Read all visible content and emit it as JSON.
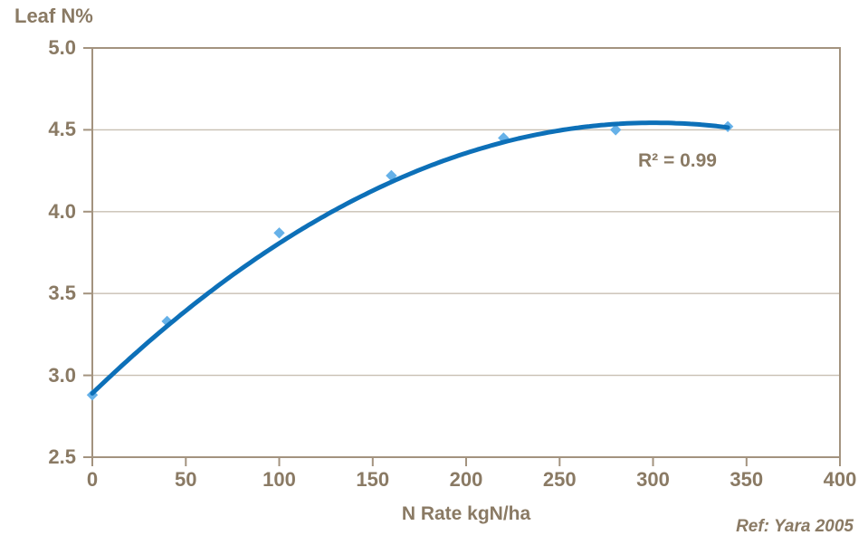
{
  "chart_data": {
    "type": "scatter",
    "title": "Leaf N%",
    "xlabel": "N Rate kgN/ha",
    "ylabel": "Leaf N%",
    "series": [
      {
        "name": "Leaf N%",
        "x": [
          0,
          40,
          100,
          160,
          220,
          280,
          340
        ],
        "y": [
          2.88,
          3.33,
          3.87,
          4.22,
          4.45,
          4.5,
          4.52
        ]
      }
    ],
    "trendline": {
      "type": "polynomial",
      "degree": 2,
      "coefficients": [
        2.89,
        0.011,
        -1.83e-05
      ],
      "x_start": 0,
      "x_end": 340,
      "r_squared": 0.99
    },
    "annotation": "R² = 0.99",
    "xlim": [
      0,
      400
    ],
    "ylim": [
      2.5,
      5.0
    ],
    "x_ticks": [
      0,
      50,
      100,
      150,
      200,
      250,
      300,
      350,
      400
    ],
    "x_tick_labels": [
      "0",
      "50",
      "100",
      "150",
      "200",
      "250",
      "300",
      "350",
      "400"
    ],
    "y_ticks": [
      2.5,
      3.0,
      3.5,
      4.0,
      4.5,
      5.0
    ],
    "y_tick_labels": [
      "2.5",
      "3.0",
      "3.5",
      "4.0",
      "4.5",
      "5.0"
    ],
    "grid": "horizontal",
    "legend": "none"
  },
  "footer": {
    "reference": "Ref: Yara 2005"
  },
  "colors": {
    "text": "#8a7a64",
    "axis": "#a3937f",
    "gridline": "#c8bfb2",
    "curve": "#0d70b8",
    "marker": "#66b1e8"
  }
}
